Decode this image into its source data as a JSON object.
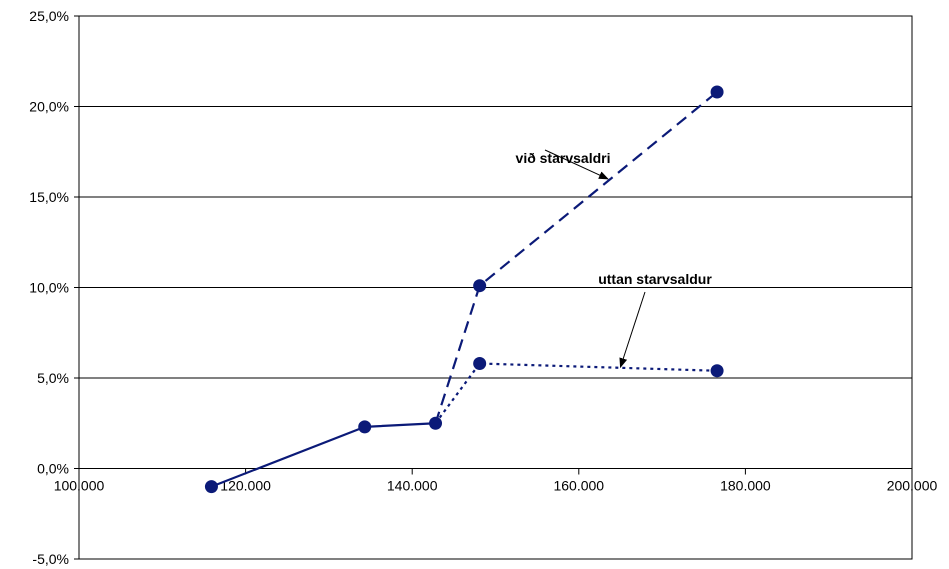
{
  "chart_data": {
    "type": "line",
    "title": "",
    "xlabel": "",
    "ylabel": "",
    "xlim": [
      100000,
      200000
    ],
    "ylim": [
      -0.05,
      0.25
    ],
    "grid": "horizontal",
    "x_ticks": [
      "100.000",
      "120.000",
      "140.000",
      "160.000",
      "180.000",
      "200.000"
    ],
    "y_ticks": [
      "-5,0%",
      "0,0%",
      "5,0%",
      "10,0%",
      "15,0%",
      "20,0%",
      "25,0%"
    ],
    "series": [
      {
        "label_role": "common",
        "style": "solid",
        "x": [
          115900,
          134300,
          142800
        ],
        "y": [
          -0.01,
          0.023,
          0.025
        ]
      },
      {
        "name": "við starvsaldri",
        "style": "dashed",
        "x": [
          142800,
          148100,
          176600
        ],
        "y": [
          0.025,
          0.101,
          0.208
        ]
      },
      {
        "name": "uttan starvsaldur",
        "style": "dotted",
        "x": [
          142800,
          148100,
          176600
        ],
        "y": [
          0.025,
          0.058,
          0.054
        ]
      }
    ],
    "points": [
      {
        "x": 115900,
        "y": -0.01
      },
      {
        "x": 134300,
        "y": 0.023
      },
      {
        "x": 142800,
        "y": 0.025
      },
      {
        "x": 148100,
        "y": 0.101
      },
      {
        "x": 148100,
        "y": 0.058
      },
      {
        "x": 176600,
        "y": 0.208
      },
      {
        "x": 176600,
        "y": 0.054
      }
    ],
    "annotations": [
      {
        "text": "við starvsaldri",
        "target_x": 163500,
        "target_y": 0.16
      },
      {
        "text": "uttan starvsaldur",
        "target_x": 165000,
        "target_y": 0.056
      }
    ],
    "colors": {
      "series": "#0b1a78",
      "marker": "#0b1a78",
      "grid": "#000000",
      "frame": "#000000"
    }
  }
}
